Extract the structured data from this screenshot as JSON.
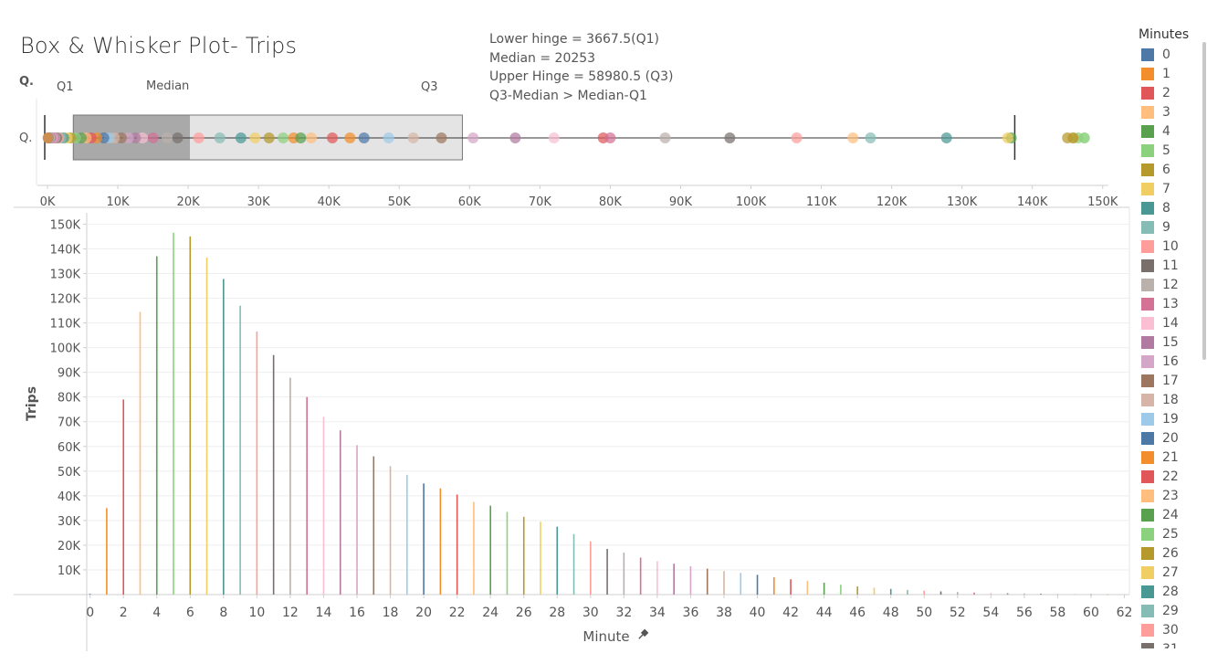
{
  "title": "Box & Whisker Plot- Trips",
  "annotations": [
    "Lower hinge = 3667.5(Q1)",
    "Median = 20253",
    "Upper Hinge = 58980.5 (Q3)",
    "Q3-Median > Median-Q1"
  ],
  "box_labels": {
    "row_header": "Q.",
    "row_label": "Q.",
    "q1": "Q1",
    "median": "Median",
    "q3": "Q3"
  },
  "legend": {
    "title": "Minutes"
  },
  "axis": {
    "x_pin_icon": "pin-icon"
  },
  "colors": {
    "palette": [
      "#4e79a7",
      "#f28e2b",
      "#e15759",
      "#ffbe7d",
      "#59a14f",
      "#8cd17d",
      "#b6992d",
      "#f1ce63",
      "#499894",
      "#86bcb6",
      "#ff9d9a",
      "#79706e",
      "#bab0ac",
      "#d37295",
      "#fabfd2",
      "#b07aa1",
      "#d4a6c8",
      "#9d7660",
      "#d7b5a6",
      "#9ecae9"
    ],
    "box_lower": "#a9a9a9",
    "box_upper": "#e4e4e4",
    "grid": "#eeeeee"
  },
  "chart_data": [
    {
      "type": "box",
      "title": "Box & Whisker Plot- Trips",
      "x_axis": {
        "ticks": [
          0,
          10000,
          20000,
          30000,
          40000,
          50000,
          60000,
          70000,
          80000,
          90000,
          100000,
          110000,
          120000,
          130000,
          140000,
          150000
        ],
        "tick_labels": [
          "0K",
          "10K",
          "20K",
          "30K",
          "40K",
          "50K",
          "60K",
          "70K",
          "80K",
          "90K",
          "100K",
          "110K",
          "120K",
          "130K",
          "140K",
          "150K"
        ],
        "range": [
          -1000,
          155000
        ]
      },
      "whisker_low": 0,
      "q1": 3667.5,
      "median": 20253,
      "q3": 58980.5,
      "whisker_high": 137500,
      "points_note": "one point per minute value, colored by Minutes, x = Trips from series below"
    },
    {
      "type": "bar",
      "xlabel": "Minute",
      "ylabel": "Trips",
      "x_ticks": [
        0,
        2,
        4,
        6,
        8,
        10,
        12,
        14,
        16,
        18,
        20,
        22,
        24,
        26,
        28,
        30,
        32,
        34,
        36,
        38,
        40,
        42,
        44,
        46,
        48,
        50,
        52,
        54,
        56,
        58,
        60,
        62
      ],
      "y_ticks": [
        10000,
        20000,
        30000,
        40000,
        50000,
        60000,
        70000,
        80000,
        90000,
        100000,
        110000,
        120000,
        130000,
        140000,
        150000
      ],
      "y_tick_labels": [
        "10K",
        "20K",
        "30K",
        "40K",
        "50K",
        "60K",
        "70K",
        "80K",
        "90K",
        "100K",
        "110K",
        "120K",
        "130K",
        "140K",
        "150K"
      ],
      "ylim": [
        0,
        152000
      ],
      "xlim": [
        -0.2,
        62.3
      ],
      "grid": true,
      "minutes": [
        0,
        1,
        2,
        3,
        4,
        5,
        6,
        7,
        8,
        9,
        10,
        11,
        12,
        13,
        14,
        15,
        16,
        17,
        18,
        19,
        20,
        21,
        22,
        23,
        24,
        25,
        26,
        27,
        28,
        29,
        30,
        31,
        32,
        33,
        34,
        35,
        36,
        37,
        38,
        39,
        40,
        41,
        42,
        43,
        44,
        45,
        46,
        47,
        48,
        49,
        50,
        51,
        52,
        53,
        54,
        55,
        56,
        57,
        58,
        59,
        60,
        61
      ],
      "trips": [
        300,
        35000,
        79000,
        114500,
        137000,
        146500,
        145000,
        136500,
        127800,
        117000,
        106500,
        97000,
        87800,
        80000,
        72000,
        66500,
        60500,
        56000,
        52000,
        48500,
        45000,
        43000,
        40500,
        37500,
        36000,
        33500,
        31500,
        29500,
        27500,
        24500,
        21500,
        18500,
        17000,
        15000,
        13500,
        12500,
        11500,
        10500,
        9500,
        8800,
        8000,
        7000,
        6200,
        5500,
        4800,
        4000,
        3300,
        2800,
        2300,
        1900,
        1600,
        1300,
        1050,
        850,
        700,
        560,
        450,
        360,
        280,
        200,
        120,
        80
      ],
      "legend_title": "Minutes"
    }
  ]
}
